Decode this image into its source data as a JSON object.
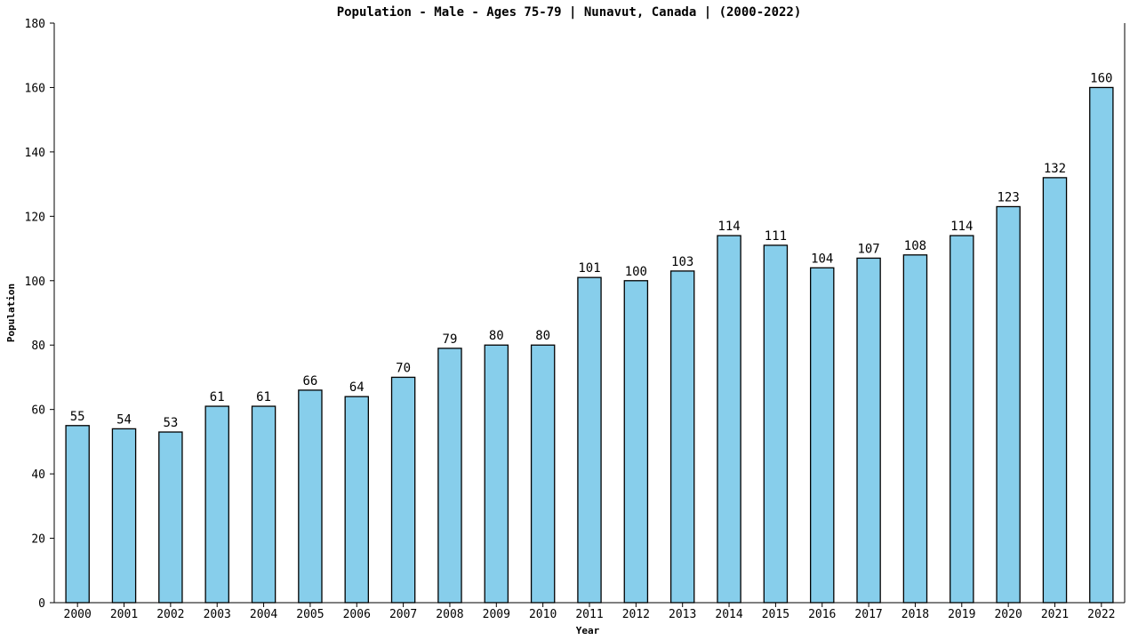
{
  "chart_data": {
    "type": "bar",
    "title": "Population - Male - Ages 75-79 | Nunavut, Canada |  (2000-2022)",
    "xlabel": "Year",
    "ylabel": "Population",
    "ylim": [
      0,
      180
    ],
    "yticks": [
      0,
      20,
      40,
      60,
      80,
      100,
      120,
      140,
      160,
      180
    ],
    "categories": [
      "2000",
      "2001",
      "2002",
      "2003",
      "2004",
      "2005",
      "2006",
      "2007",
      "2008",
      "2009",
      "2010",
      "2011",
      "2012",
      "2013",
      "2014",
      "2015",
      "2016",
      "2017",
      "2018",
      "2019",
      "2020",
      "2021",
      "2022"
    ],
    "values": [
      55,
      54,
      53,
      61,
      61,
      66,
      64,
      70,
      79,
      80,
      80,
      101,
      100,
      103,
      114,
      111,
      104,
      107,
      108,
      114,
      123,
      132,
      160
    ],
    "bar_color": "#87ceeb",
    "grid": false
  }
}
